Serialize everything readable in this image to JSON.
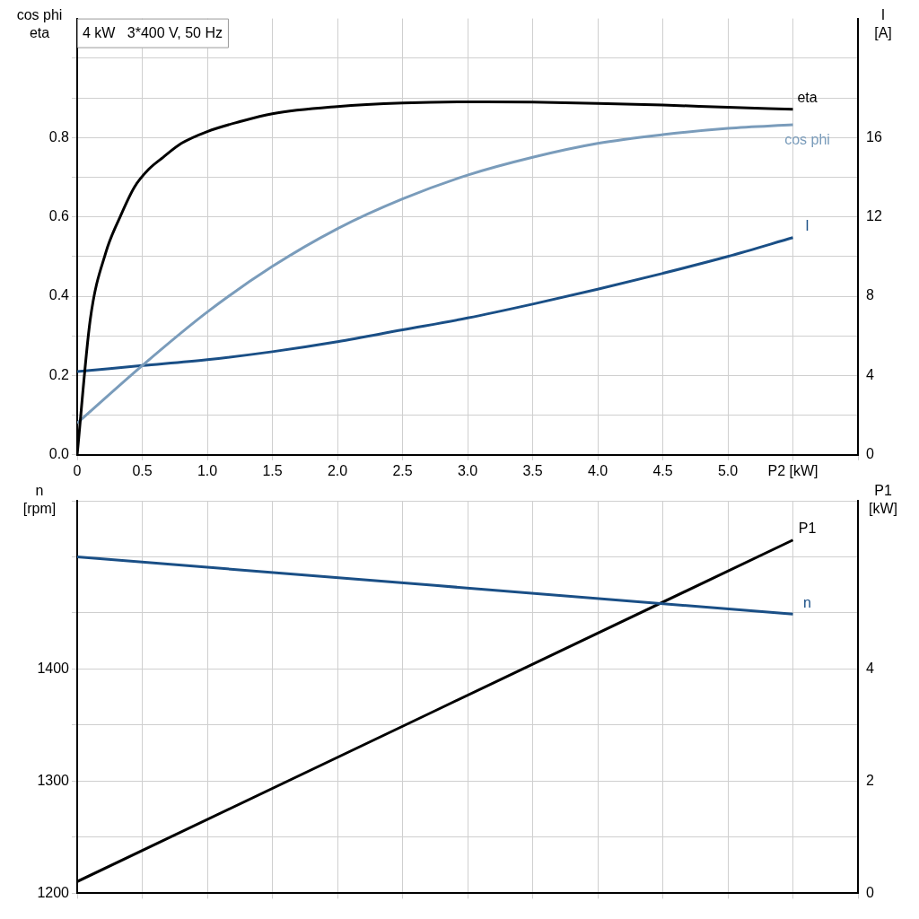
{
  "chart_data": [
    {
      "type": "line",
      "title": "4 kW   3*400 V, 50 Hz",
      "ylabel": "cos phi\neta",
      "y2label": "I\n[A]",
      "xlim": [
        0,
        6
      ],
      "xticks": [
        0,
        0.5,
        "1.0",
        1.5,
        "2.0",
        2.5,
        "3.0",
        3.5,
        "4.0",
        4.5,
        "5.0",
        {
          "value": 5.5,
          "label": "P2 [kW]"
        },
        {
          "value": 6,
          "label": null
        }
      ],
      "ylim": [
        0,
        1.1
      ],
      "yticks": [
        "0.0",
        {
          "value": 0.1,
          "label": null
        },
        0.2,
        {
          "value": 0.3,
          "label": null
        },
        0.4,
        {
          "value": 0.5,
          "label": null
        },
        0.6,
        {
          "value": 0.7,
          "label": null
        },
        0.8,
        {
          "value": 0.9,
          "label": null
        },
        {
          "value": 1.0,
          "label": null
        }
      ],
      "y2lim": [
        0,
        22
      ],
      "y2ticks": [
        0,
        4,
        8,
        12,
        16
      ],
      "grid": true,
      "legend": false,
      "marker": "none",
      "line_style": "solid",
      "series": [
        {
          "name": "eta",
          "color": "#000000",
          "x": [
            0,
            0.1,
            0.22,
            0.33,
            0.44,
            0.55,
            0.66,
            0.8,
            1.0,
            1.25,
            1.5,
            2.0,
            2.5,
            3.0,
            3.5,
            4.0,
            4.5,
            5.0,
            5.5
          ],
          "values": [
            0,
            0.34,
            0.51,
            0.6,
            0.675,
            0.72,
            0.75,
            0.785,
            0.815,
            0.84,
            0.86,
            0.878,
            0.887,
            0.89,
            0.889,
            0.886,
            0.882,
            0.876,
            0.871
          ]
        },
        {
          "name": "cos phi",
          "color": "#7a9cbb",
          "x": [
            0,
            0.5,
            1.0,
            1.5,
            2.0,
            2.5,
            3.0,
            3.5,
            4.0,
            4.5,
            5.0,
            5.5
          ],
          "values": [
            0.08,
            0.225,
            0.36,
            0.475,
            0.57,
            0.645,
            0.705,
            0.75,
            0.785,
            0.807,
            0.823,
            0.832
          ]
        },
        {
          "name": "I",
          "color": "#1a4f86",
          "axis": "y2",
          "x": [
            0,
            0.5,
            1.0,
            1.5,
            2.0,
            2.5,
            3.0,
            3.5,
            4.0,
            4.5,
            5.0,
            5.5
          ],
          "values": [
            4.2,
            4.5,
            4.8,
            5.2,
            5.7,
            6.3,
            6.9,
            7.6,
            8.35,
            9.15,
            10.0,
            10.95
          ]
        }
      ]
    },
    {
      "type": "line",
      "ylabel": "n\n[rpm]",
      "y2label": "P1\n[kW]",
      "tick_labels": "y",
      "xlim": [
        0,
        6
      ],
      "xticks": [
        0,
        0.5,
        1,
        1.5,
        2,
        2.5,
        3,
        3.5,
        4,
        4.5,
        5,
        5.5,
        6
      ],
      "ylim": [
        1200,
        1550
      ],
      "yticks": [
        1200,
        {
          "value": 1250,
          "label": null
        },
        1300,
        {
          "value": 1350,
          "label": null
        },
        1400,
        {
          "value": 1450,
          "label": null
        },
        {
          "value": 1500,
          "label": null
        },
        {
          "value": 1550,
          "label": null
        }
      ],
      "y2lim": [
        0,
        7
      ],
      "y2ticks": [
        0,
        2,
        4
      ],
      "grid": true,
      "legend": false,
      "marker": "none",
      "line_style": "solid",
      "series": [
        {
          "name": "n",
          "color": "#1a4f86",
          "x": [
            0,
            5.5
          ],
          "values": [
            1500,
            1449
          ]
        },
        {
          "name": "P1",
          "color": "#000000",
          "axis": "y2",
          "x": [
            0,
            5.5
          ],
          "values": [
            0.21,
            6.3
          ]
        }
      ]
    }
  ]
}
